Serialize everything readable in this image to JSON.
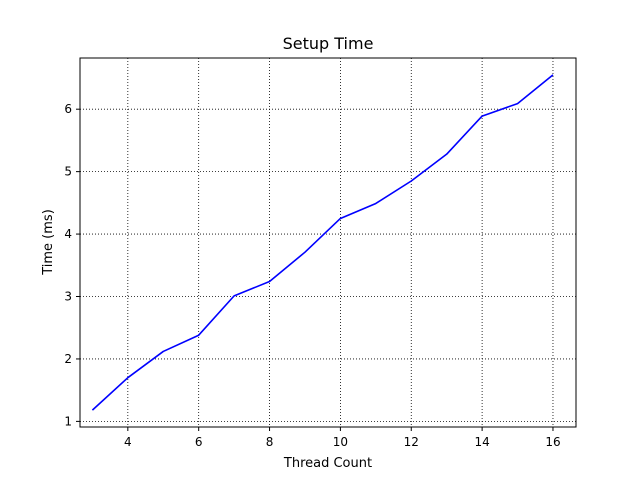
{
  "chart_data": {
    "type": "line",
    "title": "Setup Time",
    "xlabel": "Thread Count",
    "ylabel": "Time (ms)",
    "xlim": [
      2.65,
      16.65
    ],
    "ylim": [
      0.91,
      6.82
    ],
    "xticks": [
      4,
      6,
      8,
      10,
      12,
      14,
      16
    ],
    "yticks": [
      1,
      2,
      3,
      4,
      5,
      6
    ],
    "grid": true,
    "series": [
      {
        "color": "#0000ff",
        "x": [
          3,
          4,
          5,
          6,
          7,
          8,
          9,
          10,
          11,
          12,
          13,
          14,
          15,
          16
        ],
        "y": [
          1.18,
          1.7,
          2.12,
          2.38,
          3.01,
          3.24,
          3.71,
          4.25,
          4.49,
          4.85,
          5.28,
          5.89,
          6.09,
          6.55
        ]
      }
    ]
  }
}
